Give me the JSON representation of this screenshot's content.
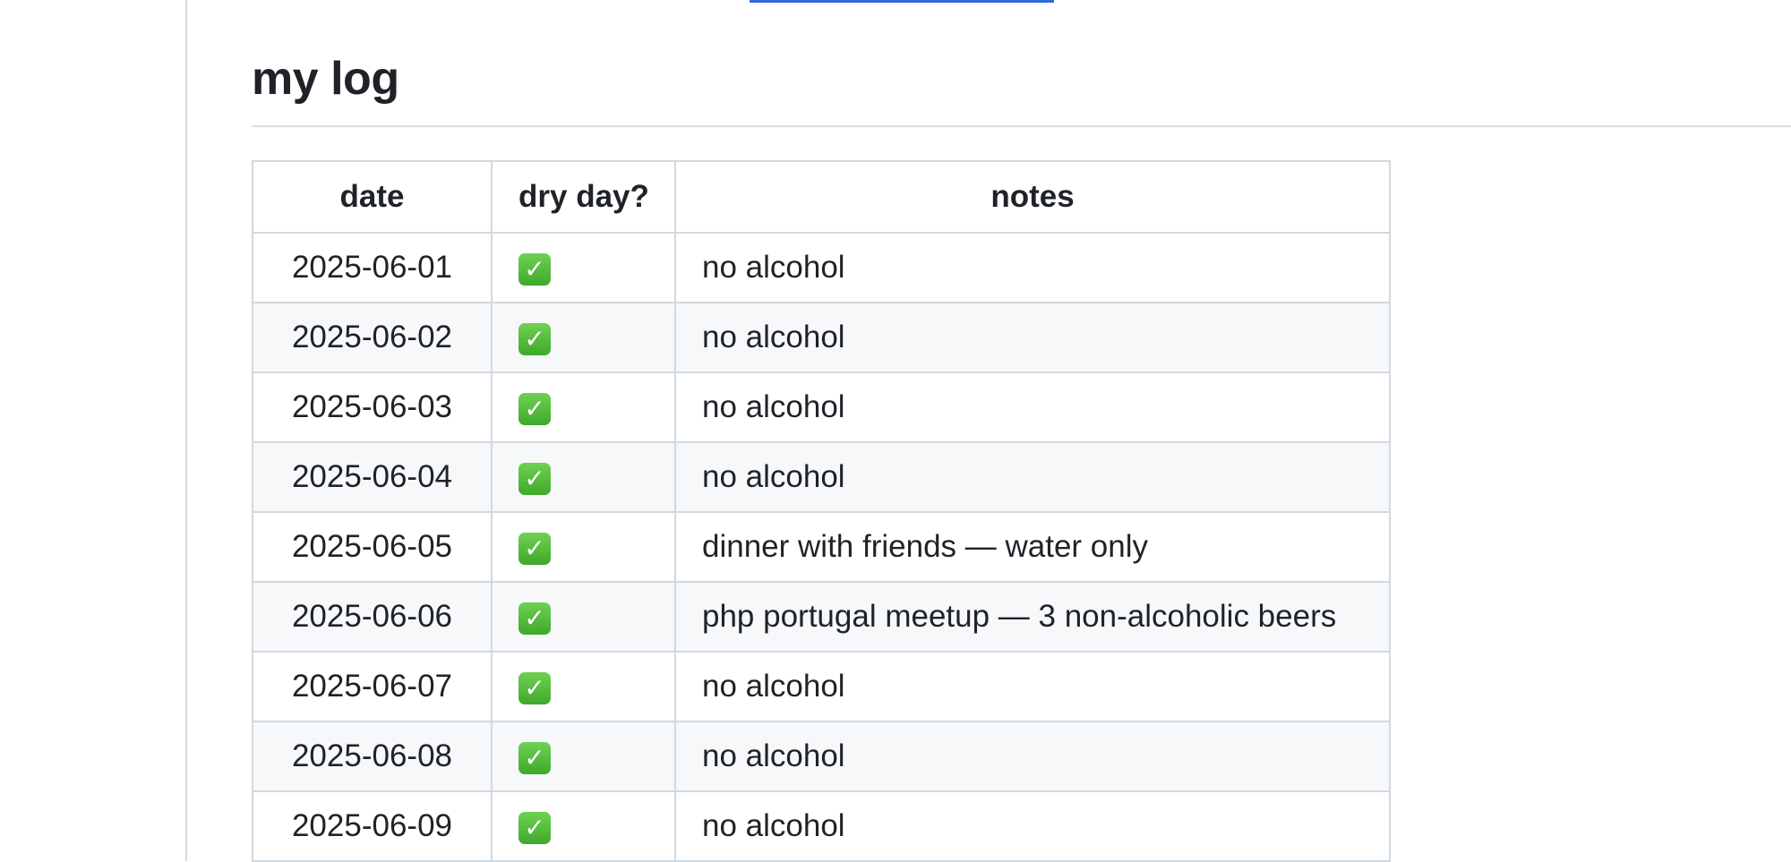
{
  "heading": "my log",
  "table": {
    "headers": [
      "date",
      "dry day?",
      "notes"
    ],
    "rows": [
      {
        "date": "2025-06-01",
        "dry_day_icon": "check-mark-button-icon",
        "dry_day": "✓",
        "notes": "no alcohol"
      },
      {
        "date": "2025-06-02",
        "dry_day_icon": "check-mark-button-icon",
        "dry_day": "✓",
        "notes": "no alcohol"
      },
      {
        "date": "2025-06-03",
        "dry_day_icon": "check-mark-button-icon",
        "dry_day": "✓",
        "notes": "no alcohol"
      },
      {
        "date": "2025-06-04",
        "dry_day_icon": "check-mark-button-icon",
        "dry_day": "✓",
        "notes": "no alcohol"
      },
      {
        "date": "2025-06-05",
        "dry_day_icon": "check-mark-button-icon",
        "dry_day": "✓",
        "notes": "dinner with friends — water only"
      },
      {
        "date": "2025-06-06",
        "dry_day_icon": "check-mark-button-icon",
        "dry_day": "✓",
        "notes": "php portugal meetup — 3 non-alcoholic beers"
      },
      {
        "date": "2025-06-07",
        "dry_day_icon": "check-mark-button-icon",
        "dry_day": "✓",
        "notes": "no alcohol"
      },
      {
        "date": "2025-06-08",
        "dry_day_icon": "check-mark-button-icon",
        "dry_day": "✓",
        "notes": "no alcohol"
      },
      {
        "date": "2025-06-09",
        "dry_day_icon": "check-mark-button-icon",
        "dry_day": "✓",
        "notes": "no alcohol"
      }
    ]
  },
  "colors": {
    "text": "#1f2328",
    "border": "#d1d9e0",
    "stripe": "#f6f8fa",
    "check": "#3fa82a",
    "link_underline": "#2f6bd8"
  }
}
